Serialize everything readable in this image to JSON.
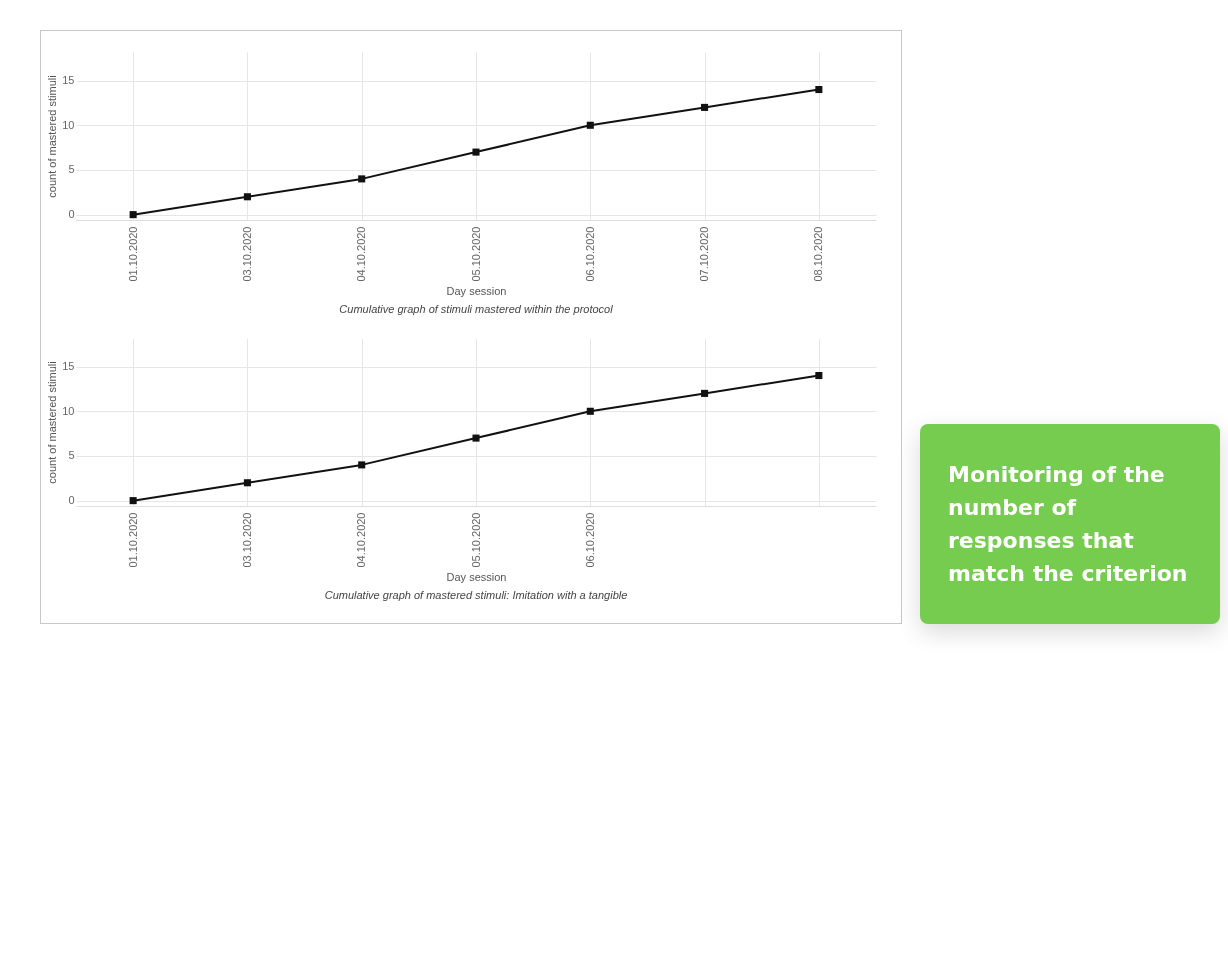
{
  "chart_data": [
    {
      "type": "line",
      "xlabel": "Day session",
      "ylabel": "count of mastered stimuli",
      "categories": [
        "01.10.2020",
        "03.10.2020",
        "04.10.2020",
        "05.10.2020",
        "06.10.2020",
        "07.10.2020",
        "08.10.2020"
      ],
      "values": [
        0,
        2,
        4,
        7,
        10,
        12,
        14
      ],
      "color": "#111111",
      "marker": "square",
      "ylim": [
        -0.6,
        18.2
      ],
      "yticks": [
        0,
        5,
        10,
        15
      ],
      "grid": true,
      "annotations": [
        "Cumulative graph of stimuli mastered within the protocol"
      ]
    },
    {
      "type": "line",
      "xlabel": "Day session",
      "ylabel": "count of mastered stimuli",
      "categories": [
        "01.10.2020",
        "03.10.2020",
        "04.10.2020",
        "05.10.2020",
        "06.10.2020",
        null,
        null
      ],
      "values": [
        0,
        2,
        4,
        7,
        10,
        12,
        14
      ],
      "color": "#111111",
      "marker": "square",
      "ylim": [
        -0.6,
        18.2
      ],
      "yticks": [
        0,
        5,
        10,
        15
      ],
      "grid": true,
      "annotations": [
        "Cumulative graph of mastered stimuli: Imitation with a tangible"
      ]
    },
    {
      "type": "other",
      "title": "Monitoring of the number of responses that match the criterion"
    }
  ]
}
